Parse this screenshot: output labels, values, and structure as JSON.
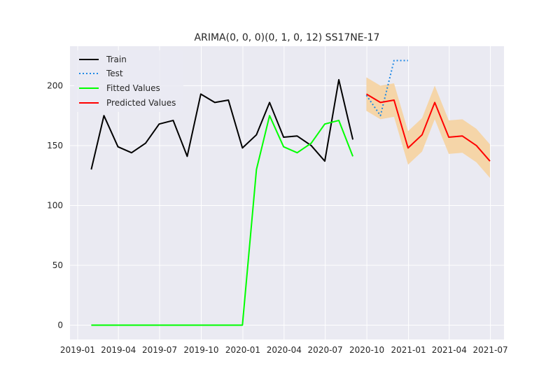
{
  "chart_data": {
    "type": "line",
    "title": "ARIMA(0, 0, 0)(0, 1, 0, 12) SS17NE-17",
    "xlabel": "",
    "ylabel": "",
    "xlim": [
      "2018-12-15",
      "2021-07-31"
    ],
    "ylim": [
      -12,
      233
    ],
    "grid": true,
    "legend_position": "top-left",
    "x_tick_labels": [
      "2019-01",
      "2019-04",
      "2019-07",
      "2019-10",
      "2020-01",
      "2020-04",
      "2020-07",
      "2020-10",
      "2021-01",
      "2021-04",
      "2021-07"
    ],
    "y_tick_labels": [
      "0",
      "50",
      "100",
      "150",
      "200"
    ],
    "series": [
      {
        "name": "Train",
        "color": "#000000",
        "style": "solid",
        "x": [
          "2019-01-31",
          "2019-02-28",
          "2019-03-31",
          "2019-04-30",
          "2019-05-31",
          "2019-06-30",
          "2019-07-31",
          "2019-08-31",
          "2019-09-30",
          "2019-10-31",
          "2019-11-30",
          "2019-12-31",
          "2020-01-31",
          "2020-02-29",
          "2020-03-31",
          "2020-04-30",
          "2020-05-31",
          "2020-06-30",
          "2020-07-31",
          "2020-08-31"
        ],
        "values": [
          130,
          175,
          149,
          144,
          152,
          168,
          171,
          141,
          193,
          186,
          188,
          148,
          159,
          186,
          157,
          158,
          150,
          137,
          205,
          155
        ]
      },
      {
        "name": "Test",
        "color": "#1e88e5",
        "style": "dotted",
        "x": [
          "2020-09-30",
          "2020-10-31",
          "2020-11-30",
          "2020-12-31"
        ],
        "values": [
          192,
          175,
          221,
          221
        ]
      },
      {
        "name": "Fitted Values",
        "color": "#00ff00",
        "style": "solid",
        "x": [
          "2019-01-31",
          "2019-02-28",
          "2019-03-31",
          "2019-04-30",
          "2019-05-31",
          "2019-06-30",
          "2019-07-31",
          "2019-08-31",
          "2019-09-30",
          "2019-10-31",
          "2019-11-30",
          "2019-12-31",
          "2020-01-31",
          "2020-02-29",
          "2020-03-31",
          "2020-04-30",
          "2020-05-31",
          "2020-06-30",
          "2020-07-31",
          "2020-08-31"
        ],
        "values": [
          0,
          0,
          0,
          0,
          0,
          0,
          0,
          0,
          0,
          0,
          0,
          0,
          130,
          175,
          149,
          144,
          152,
          168,
          171,
          141
        ]
      },
      {
        "name": "Predicted Values",
        "color": "#ff0000",
        "style": "solid",
        "x": [
          "2020-09-30",
          "2020-10-31",
          "2020-11-30",
          "2020-12-31",
          "2021-01-31",
          "2021-02-28",
          "2021-03-31",
          "2021-04-30",
          "2021-05-31",
          "2021-06-30"
        ],
        "values": [
          193,
          186,
          188,
          148,
          159,
          186,
          157,
          158,
          150,
          137
        ]
      }
    ],
    "confidence_band": {
      "color": "#f5d5a8",
      "x": [
        "2020-09-30",
        "2020-10-31",
        "2020-11-30",
        "2020-12-31",
        "2021-01-31",
        "2021-02-28",
        "2021-03-31",
        "2021-04-30",
        "2021-05-31",
        "2021-06-30"
      ],
      "lower": [
        179,
        172,
        174,
        134,
        145,
        172,
        143,
        144,
        136,
        123
      ],
      "upper": [
        207,
        200,
        202,
        162,
        173,
        200,
        171,
        172,
        164,
        151
      ]
    }
  }
}
